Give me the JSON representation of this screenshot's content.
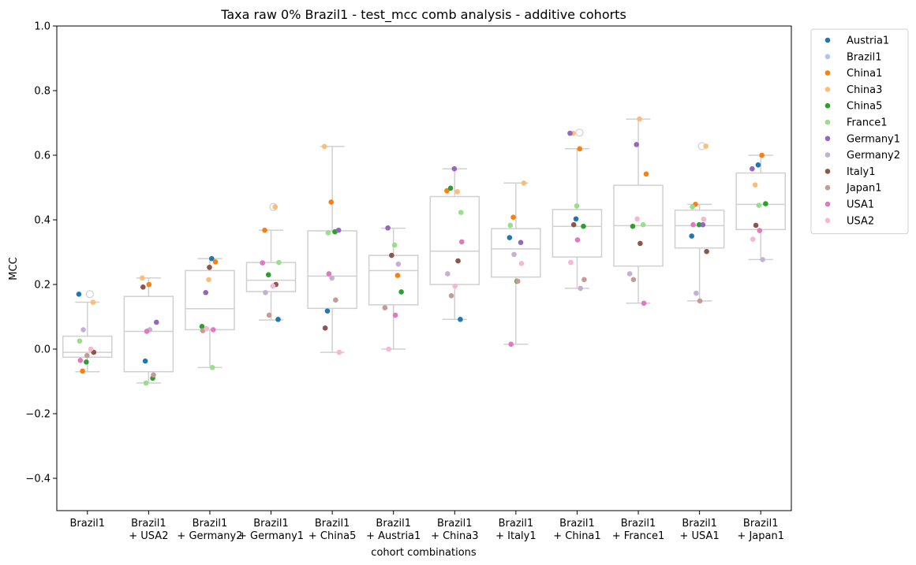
{
  "chart_data": {
    "type": "box",
    "title": "Taxa raw 0% Brazil1 - test_mcc comb analysis - additive cohorts",
    "xlabel": "cohort combinations",
    "ylabel": "MCC",
    "ylim": [
      -0.5,
      1.0
    ],
    "yticks": [
      -0.4,
      -0.2,
      0.0,
      0.2,
      0.4,
      0.6,
      0.8,
      1.0
    ],
    "ytick_labels": [
      "−0.4",
      "−0.2",
      "0.0",
      "0.2",
      "0.4",
      "0.6",
      "0.8",
      "1.0"
    ],
    "legend_position": "outside-top-right",
    "categories": [
      [
        "Brazil1"
      ],
      [
        "Brazil1",
        "+ USA2"
      ],
      [
        "Brazil1",
        "+ Germany2"
      ],
      [
        "Brazil1",
        "+ Germany1"
      ],
      [
        "Brazil1",
        "+ China5"
      ],
      [
        "Brazil1",
        "+ Austria1"
      ],
      [
        "Brazil1",
        "+ China3"
      ],
      [
        "Brazil1",
        "+ Italy1"
      ],
      [
        "Brazil1",
        "+ China1"
      ],
      [
        "Brazil1",
        "+ France1"
      ],
      [
        "Brazil1",
        "+ USA1"
      ],
      [
        "Brazil1",
        "+ Japan1"
      ]
    ],
    "boxes": [
      {
        "q1": -0.025,
        "median": -0.01,
        "q3": 0.04,
        "whisker_low": -0.07,
        "whisker_high": 0.145,
        "outliers": [
          0.17
        ]
      },
      {
        "q1": -0.07,
        "median": 0.055,
        "q3": 0.163,
        "whisker_low": -0.105,
        "whisker_high": 0.22,
        "outliers": []
      },
      {
        "q1": 0.06,
        "median": 0.125,
        "q3": 0.243,
        "whisker_low": -0.057,
        "whisker_high": 0.28,
        "outliers": []
      },
      {
        "q1": 0.178,
        "median": 0.213,
        "q3": 0.268,
        "whisker_low": 0.09,
        "whisker_high": 0.368,
        "outliers": [
          0.44
        ]
      },
      {
        "q1": 0.126,
        "median": 0.226,
        "q3": 0.366,
        "whisker_low": -0.01,
        "whisker_high": 0.627,
        "outliers": []
      },
      {
        "q1": 0.137,
        "median": 0.243,
        "q3": 0.29,
        "whisker_low": 0.0,
        "whisker_high": 0.374,
        "outliers": []
      },
      {
        "q1": 0.2,
        "median": 0.303,
        "q3": 0.472,
        "whisker_low": 0.092,
        "whisker_high": 0.558,
        "outliers": []
      },
      {
        "q1": 0.223,
        "median": 0.31,
        "q3": 0.373,
        "whisker_low": 0.015,
        "whisker_high": 0.514,
        "outliers": []
      },
      {
        "q1": 0.285,
        "median": 0.38,
        "q3": 0.432,
        "whisker_low": 0.188,
        "whisker_high": 0.62,
        "outliers": [
          0.67
        ]
      },
      {
        "q1": 0.257,
        "median": 0.382,
        "q3": 0.507,
        "whisker_low": 0.142,
        "whisker_high": 0.712,
        "outliers": []
      },
      {
        "q1": 0.313,
        "median": 0.382,
        "q3": 0.43,
        "whisker_low": 0.149,
        "whisker_high": 0.448,
        "outliers": [
          0.628
        ]
      },
      {
        "q1": 0.37,
        "median": 0.448,
        "q3": 0.545,
        "whisker_low": 0.277,
        "whisker_high": 0.6,
        "outliers": []
      }
    ],
    "series": [
      {
        "name": "Austria1",
        "color": "#1f77b4",
        "points": [
          [
            0,
            0.17
          ],
          [
            1,
            -0.037
          ],
          [
            2,
            0.28
          ],
          [
            3,
            0.092
          ],
          [
            4,
            0.118
          ],
          [
            5,
            null
          ],
          [
            6,
            0.092
          ],
          [
            7,
            0.345
          ],
          [
            8,
            0.403
          ],
          [
            9,
            null
          ],
          [
            10,
            0.35
          ],
          [
            11,
            0.57
          ]
        ]
      },
      {
        "name": "Brazil1",
        "color": "#aec7e8",
        "points": []
      },
      {
        "name": "China1",
        "color": "#ff7f0e",
        "points": [
          [
            0,
            -0.068
          ],
          [
            1,
            0.2
          ],
          [
            2,
            0.27
          ],
          [
            3,
            0.368
          ],
          [
            4,
            0.455
          ],
          [
            5,
            0.228
          ],
          [
            6,
            0.49
          ],
          [
            7,
            0.408
          ],
          [
            8,
            0.62
          ],
          [
            9,
            0.542
          ],
          [
            10,
            0.448
          ],
          [
            11,
            0.6
          ]
        ]
      },
      {
        "name": "China3",
        "color": "#ffbb78",
        "points": [
          [
            0,
            0.145
          ],
          [
            1,
            0.22
          ],
          [
            2,
            0.215
          ],
          [
            3,
            0.44
          ],
          [
            4,
            0.627
          ],
          [
            5,
            null
          ],
          [
            6,
            0.487
          ],
          [
            7,
            0.514
          ],
          [
            8,
            0.668
          ],
          [
            9,
            0.712
          ],
          [
            10,
            0.628
          ],
          [
            11,
            0.508
          ]
        ]
      },
      {
        "name": "China5",
        "color": "#2ca02c",
        "points": [
          [
            0,
            -0.04
          ],
          [
            1,
            -0.09
          ],
          [
            2,
            0.07
          ],
          [
            3,
            0.23
          ],
          [
            4,
            0.363
          ],
          [
            5,
            0.177
          ],
          [
            6,
            0.498
          ],
          [
            7,
            0.21
          ],
          [
            8,
            0.38
          ],
          [
            9,
            0.38
          ],
          [
            10,
            0.385
          ],
          [
            11,
            0.45
          ]
        ]
      },
      {
        "name": "France1",
        "color": "#98df8a",
        "points": [
          [
            0,
            0.025
          ],
          [
            1,
            -0.105
          ],
          [
            2,
            -0.057
          ],
          [
            3,
            0.268
          ],
          [
            4,
            0.36
          ],
          [
            5,
            0.322
          ],
          [
            6,
            0.423
          ],
          [
            7,
            0.383
          ],
          [
            8,
            0.443
          ],
          [
            9,
            0.385
          ],
          [
            10,
            0.44
          ],
          [
            11,
            0.445
          ]
        ]
      },
      {
        "name": "Germany1",
        "color": "#9467bd",
        "points": [
          [
            0,
            null
          ],
          [
            1,
            0.083
          ],
          [
            2,
            0.175
          ],
          [
            3,
            null
          ],
          [
            4,
            0.368
          ],
          [
            5,
            0.375
          ],
          [
            6,
            0.558
          ],
          [
            7,
            0.33
          ],
          [
            8,
            0.668
          ],
          [
            9,
            0.633
          ],
          [
            10,
            0.385
          ],
          [
            11,
            0.558
          ]
        ]
      },
      {
        "name": "Germany2",
        "color": "#c5b0d5",
        "points": [
          [
            0,
            0.06
          ],
          [
            1,
            0.06
          ],
          [
            2,
            null
          ],
          [
            3,
            0.175
          ],
          [
            4,
            0.22
          ],
          [
            5,
            0.263
          ],
          [
            6,
            0.233
          ],
          [
            7,
            0.293
          ],
          [
            8,
            0.188
          ],
          [
            9,
            0.233
          ],
          [
            10,
            0.173
          ],
          [
            11,
            0.277
          ]
        ]
      },
      {
        "name": "Italy1",
        "color": "#8c564b",
        "points": [
          [
            0,
            -0.01
          ],
          [
            1,
            0.192
          ],
          [
            2,
            0.253
          ],
          [
            3,
            0.2
          ],
          [
            4,
            0.065
          ],
          [
            5,
            0.29
          ],
          [
            6,
            0.273
          ],
          [
            7,
            null
          ],
          [
            8,
            0.385
          ],
          [
            9,
            0.327
          ],
          [
            10,
            0.302
          ],
          [
            11,
            0.383
          ]
        ]
      },
      {
        "name": "Japan1",
        "color": "#c49c94",
        "points": [
          [
            0,
            -0.02
          ],
          [
            1,
            -0.08
          ],
          [
            2,
            0.057
          ],
          [
            3,
            0.105
          ],
          [
            4,
            0.152
          ],
          [
            5,
            0.128
          ],
          [
            6,
            0.165
          ],
          [
            7,
            0.21
          ],
          [
            8,
            0.215
          ],
          [
            9,
            0.215
          ],
          [
            10,
            0.149
          ],
          [
            11,
            null
          ]
        ]
      },
      {
        "name": "USA1",
        "color": "#e377c2",
        "points": [
          [
            0,
            -0.035
          ],
          [
            1,
            0.055
          ],
          [
            2,
            0.06
          ],
          [
            3,
            0.267
          ],
          [
            4,
            0.233
          ],
          [
            5,
            0.105
          ],
          [
            6,
            0.332
          ],
          [
            7,
            0.015
          ],
          [
            8,
            0.338
          ],
          [
            9,
            0.142
          ],
          [
            10,
            0.385
          ],
          [
            11,
            0.367
          ]
        ]
      },
      {
        "name": "USA2",
        "color": "#f7b6d2",
        "points": [
          [
            0,
            0.0
          ],
          [
            1,
            null
          ],
          [
            2,
            0.063
          ],
          [
            3,
            0.195
          ],
          [
            4,
            -0.01
          ],
          [
            5,
            0.0
          ],
          [
            6,
            0.195
          ],
          [
            7,
            0.265
          ],
          [
            8,
            0.268
          ],
          [
            9,
            0.403
          ],
          [
            10,
            0.402
          ],
          [
            11,
            0.34
          ]
        ]
      }
    ]
  }
}
